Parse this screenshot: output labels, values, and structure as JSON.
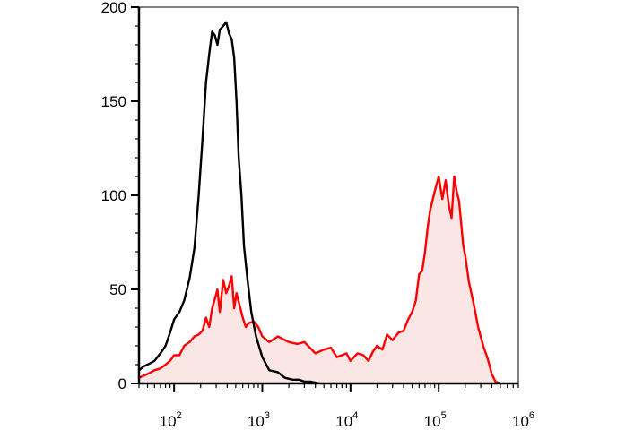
{
  "chart_data": {
    "type": "area",
    "title": "",
    "xlabel": "",
    "ylabel": "",
    "x_scale": "log",
    "xlim": [
      40,
      800000
    ],
    "ylim": [
      0,
      200
    ],
    "x_ticks": [
      {
        "value": 100,
        "base": "10",
        "exp": "2"
      },
      {
        "value": 1000,
        "base": "10",
        "exp": "3"
      },
      {
        "value": 10000,
        "base": "10",
        "exp": "4"
      },
      {
        "value": 100000,
        "base": "10",
        "exp": "5"
      },
      {
        "value": 1000000,
        "base": "10",
        "exp": "6"
      }
    ],
    "y_ticks": [
      {
        "value": 0,
        "label": "0"
      },
      {
        "value": 50,
        "label": "50"
      },
      {
        "value": 100,
        "label": "100"
      },
      {
        "value": 150,
        "label": "150"
      },
      {
        "value": 200,
        "label": "200"
      }
    ],
    "grid": false,
    "series": [
      {
        "style": "line",
        "color": "#000000",
        "x": [
          40,
          45,
          50,
          60,
          70,
          80,
          90,
          100,
          115,
          130,
          150,
          170,
          190,
          210,
          230,
          250,
          270,
          290,
          310,
          330,
          360,
          390,
          420,
          450,
          480,
          510,
          540,
          580,
          620,
          680,
          750,
          850,
          1000,
          1200,
          1500,
          1800,
          2200,
          2600,
          3000,
          3500,
          4500
        ],
        "y": [
          7,
          9,
          10,
          12,
          16,
          20,
          27,
          34,
          38,
          44,
          56,
          72,
          100,
          130,
          160,
          175,
          187,
          185,
          180,
          188,
          190,
          192,
          186,
          183,
          173,
          150,
          120,
          100,
          73,
          55,
          38,
          25,
          14,
          7,
          6,
          3,
          2,
          2,
          1,
          1,
          0
        ]
      },
      {
        "style": "filled",
        "color": "#ff0000",
        "fill": "#fbe6e6",
        "x": [
          40,
          50,
          60,
          70,
          80,
          90,
          100,
          115,
          130,
          150,
          170,
          190,
          210,
          230,
          250,
          270,
          290,
          310,
          330,
          360,
          390,
          420,
          450,
          480,
          510,
          550,
          600,
          650,
          700,
          800,
          900,
          1000,
          1200,
          1500,
          2000,
          2500,
          3000,
          4000,
          5000,
          6000,
          7000,
          8000,
          9000,
          10000,
          12000,
          14000,
          16000,
          18000,
          20000,
          23000,
          26000,
          30000,
          35000,
          40000,
          45000,
          50000,
          55000,
          60000,
          65000,
          70000,
          75000,
          80000,
          90000,
          100000,
          110000,
          120000,
          130000,
          140000,
          150000,
          160000,
          170000,
          180000,
          190000,
          200000,
          220000,
          250000,
          280000,
          320000,
          360000,
          400000,
          440000,
          500000
        ],
        "y": [
          3,
          5,
          7,
          8,
          10,
          12,
          15,
          15,
          20,
          22,
          25,
          26,
          28,
          35,
          30,
          40,
          45,
          50,
          38,
          55,
          48,
          52,
          57,
          40,
          48,
          42,
          35,
          30,
          32,
          33,
          30,
          25,
          22,
          25,
          22,
          21,
          22,
          16,
          18,
          19,
          14,
          15,
          16,
          12,
          16,
          15,
          12,
          17,
          20,
          18,
          26,
          23,
          27,
          28,
          34,
          38,
          44,
          58,
          60,
          70,
          83,
          92,
          102,
          110,
          98,
          108,
          95,
          88,
          110,
          102,
          97,
          85,
          73,
          68,
          54,
          42,
          30,
          20,
          13,
          5,
          1,
          0
        ]
      }
    ]
  }
}
